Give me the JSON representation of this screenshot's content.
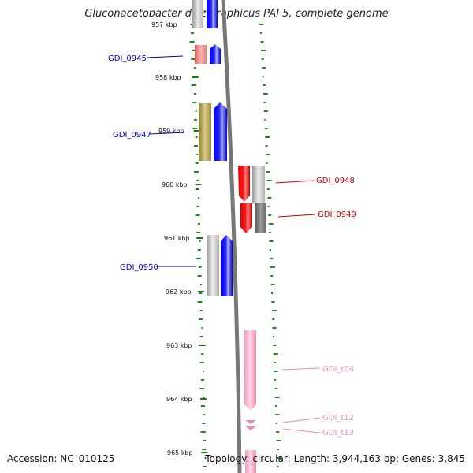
{
  "title": "Gluconacetobacter diazotrophicus PAI 5, complete genome",
  "footer": {
    "accession": "Accession: NC_010125",
    "summary": "Topology: circular; Length: 3,944,163 bp; Genes: 3,845"
  },
  "ticks": [
    "957 kbp",
    "958 kbp",
    "959 kbp",
    "960 kbp",
    "961 kbp",
    "962 kbp",
    "963 kbp",
    "964 kbp",
    "965 kbp"
  ],
  "genes": [
    {
      "id": "GDI_0945",
      "strand": "reverse",
      "color": "#0000cc"
    },
    {
      "id": "GDI_0947",
      "strand": "reverse",
      "color": "#0000cc"
    },
    {
      "id": "GDI_0948",
      "strand": "forward",
      "color": "#cc0000"
    },
    {
      "id": "GDI_0949",
      "strand": "forward",
      "color": "#cc0000"
    },
    {
      "id": "GDI_0950",
      "strand": "reverse",
      "color": "#0000cc"
    },
    {
      "id": "GDI_r04",
      "strand": "forward",
      "color": "#f08cb4"
    },
    {
      "id": "GDI_t12",
      "strand": "forward",
      "color": "#f08cb4"
    },
    {
      "id": "GDI_t13",
      "strand": "forward",
      "color": "#f08cb4"
    }
  ]
}
